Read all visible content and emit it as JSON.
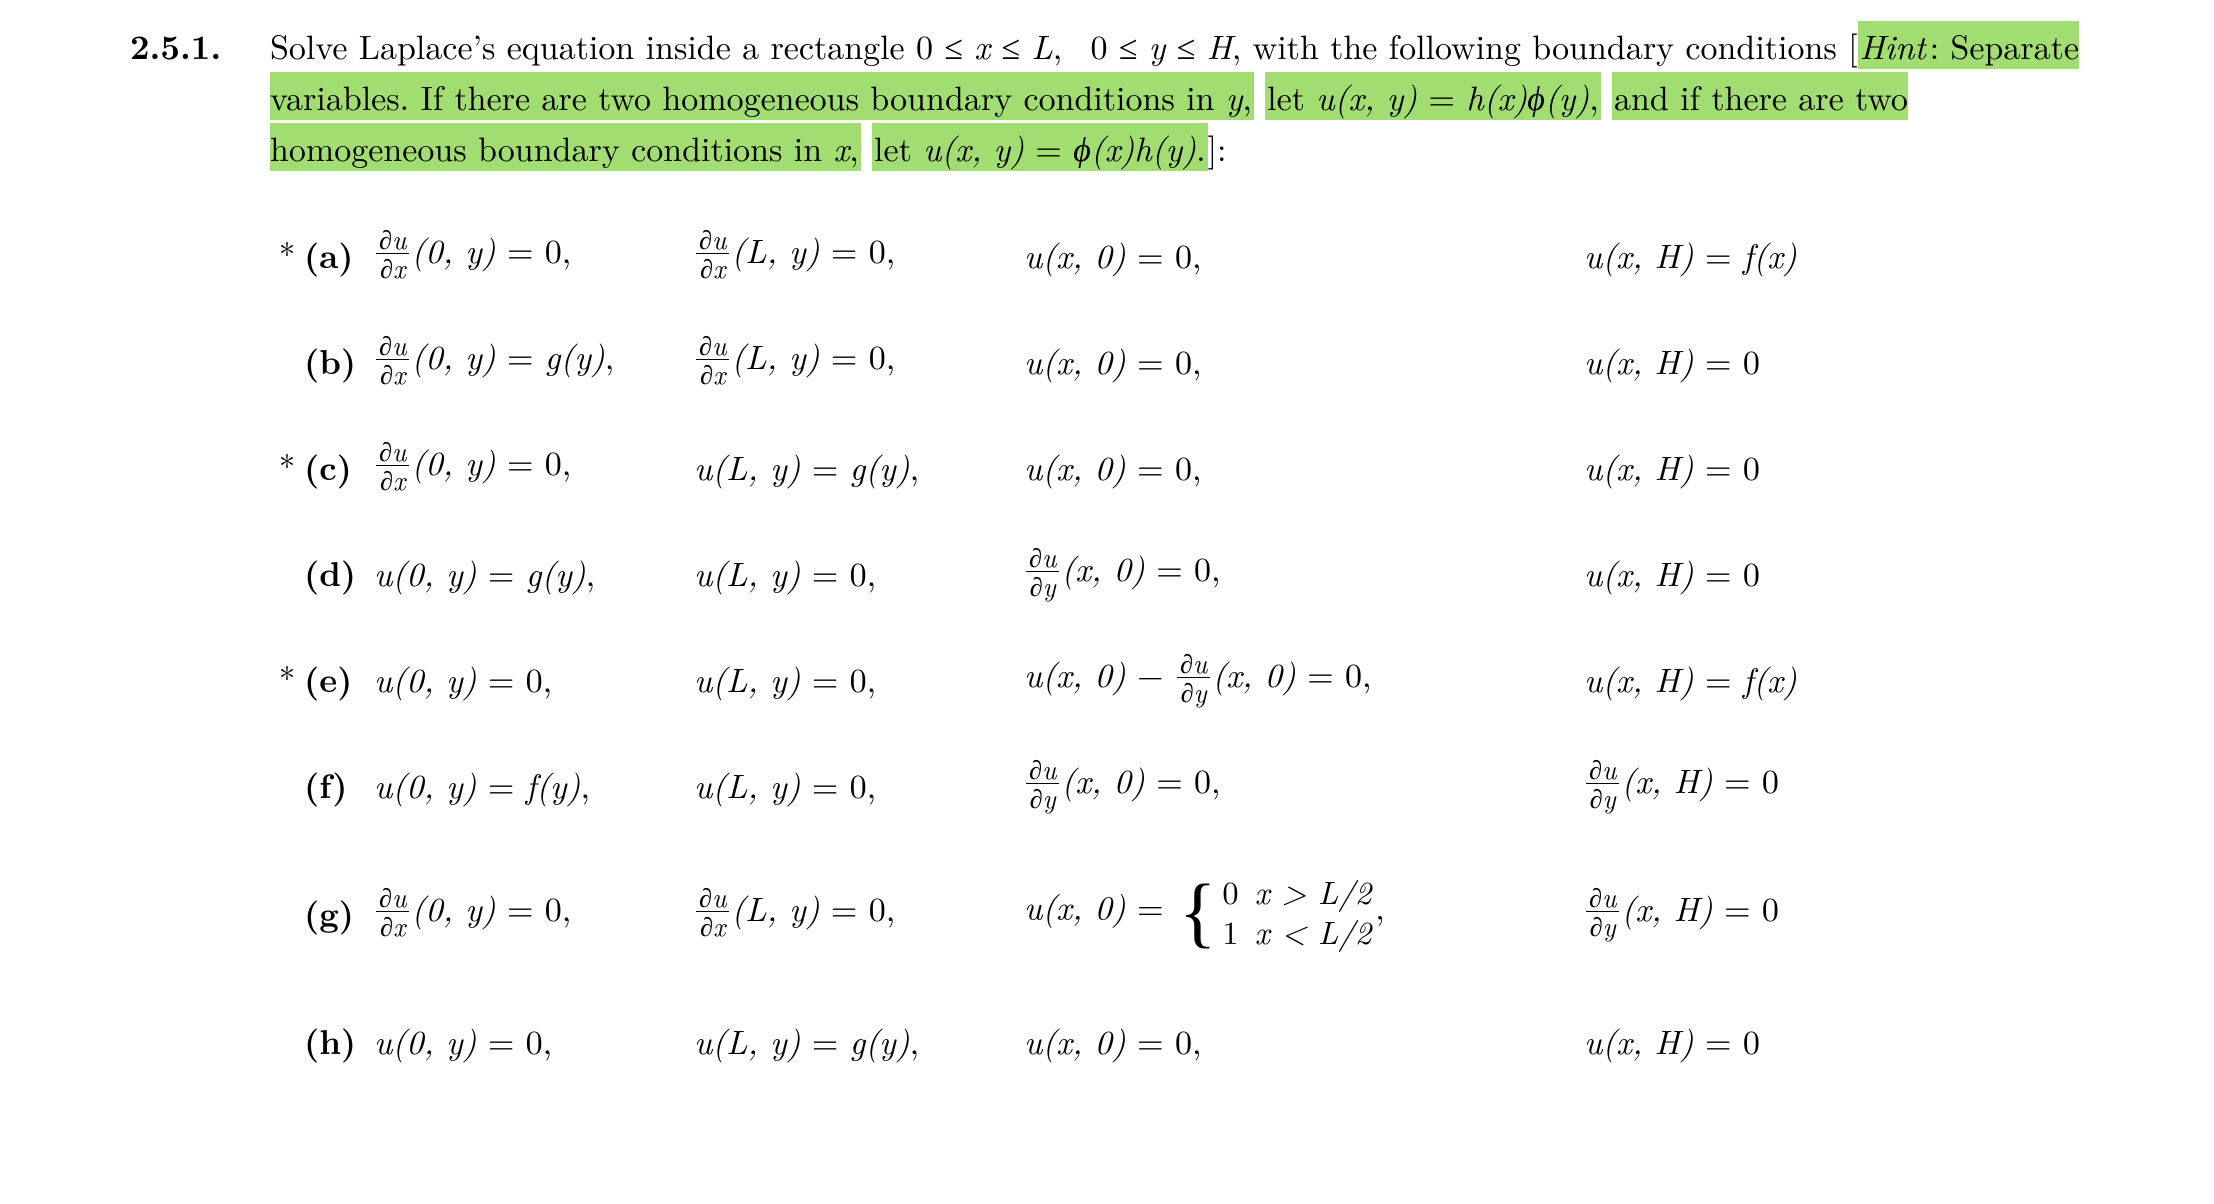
{
  "problem_number": "2.5.1.",
  "intro": {
    "text_before_hint": "Solve Laplace's equation inside a rectangle 0 ≤ x ≤ L, 0 ≤ y ≤ H, with the following boundary conditions [",
    "hint_label": "Hint",
    "hint_seg1": ": Separate variables. If there are two homogeneous boundary conditions in ",
    "hint_var1": "y",
    "hint_seg2": ", let ",
    "hint_eq1_lhs": "u(x, y)",
    "hint_eq1_rhs_h": "h(x)",
    "hint_eq1_rhs_phi": "ϕ(y)",
    "hint_seg3": ", and if there are two homogeneous boundary conditions in ",
    "hint_var2": "x",
    "hint_seg4": ", let ",
    "hint_eq2_lhs": "u(x, y)",
    "hint_eq2_rhs_phi": "ϕ(x)",
    "hint_eq2_rhs_h": "h(y)",
    "hint_seg5": ".]:"
  },
  "highlight_color": "#a1dd70",
  "text_color": "#000000",
  "background_color": "#ffffff",
  "parts": [
    {
      "star": "*",
      "label": "(a)",
      "bc1": {
        "type": "frac",
        "dnum": "∂u",
        "dden": "∂x",
        "arg": "(0, y)",
        "rhs": "= 0,"
      },
      "bc2": {
        "type": "frac",
        "dnum": "∂u",
        "dden": "∂x",
        "arg": "(L, y)",
        "rhs": "= 0,"
      },
      "bc3": {
        "type": "plain",
        "lhs": "u(x, 0)",
        "rhs": "= 0,"
      },
      "bc4": {
        "type": "plain",
        "lhs": "u(x, H)",
        "rhs": "= f(x)"
      }
    },
    {
      "star": "",
      "label": "(b)",
      "bc1": {
        "type": "frac",
        "dnum": "∂u",
        "dden": "∂x",
        "arg": "(0, y)",
        "rhs": "= g(y),"
      },
      "bc2": {
        "type": "frac",
        "dnum": "∂u",
        "dden": "∂x",
        "arg": "(L, y)",
        "rhs": "= 0,"
      },
      "bc3": {
        "type": "plain",
        "lhs": "u(x, 0)",
        "rhs": "= 0,"
      },
      "bc4": {
        "type": "plain",
        "lhs": "u(x, H)",
        "rhs": "= 0"
      }
    },
    {
      "star": "*",
      "label": "(c)",
      "bc1": {
        "type": "frac",
        "dnum": "∂u",
        "dden": "∂x",
        "arg": "(0, y)",
        "rhs": "= 0,"
      },
      "bc2": {
        "type": "plain",
        "lhs": "u(L, y)",
        "rhs": "= g(y),"
      },
      "bc3": {
        "type": "plain",
        "lhs": "u(x, 0)",
        "rhs": "= 0,"
      },
      "bc4": {
        "type": "plain",
        "lhs": "u(x, H)",
        "rhs": "= 0"
      }
    },
    {
      "star": "",
      "label": "(d)",
      "bc1": {
        "type": "plain",
        "lhs": "u(0, y)",
        "rhs": "= g(y),"
      },
      "bc2": {
        "type": "plain",
        "lhs": "u(L, y)",
        "rhs": "= 0,"
      },
      "bc3": {
        "type": "frac",
        "dnum": "∂u",
        "dden": "∂y",
        "arg": "(x, 0)",
        "rhs": "= 0,"
      },
      "bc4": {
        "type": "plain",
        "lhs": "u(x, H)",
        "rhs": "= 0"
      }
    },
    {
      "star": "*",
      "label": "(e)",
      "bc1": {
        "type": "plain",
        "lhs": "u(0, y)",
        "rhs": "= 0,"
      },
      "bc2": {
        "type": "plain",
        "lhs": "u(L, y)",
        "rhs": "= 0,"
      },
      "bc3": {
        "type": "minusfrac",
        "lhs": "u(x, 0)",
        "op": "−",
        "dnum": "∂u",
        "dden": "∂y",
        "arg": "(x, 0)",
        "rhs": "= 0,"
      },
      "bc4": {
        "type": "plain",
        "lhs": "u(x, H)",
        "rhs": "= f(x)"
      }
    },
    {
      "star": "",
      "label": "(f)",
      "bc1": {
        "type": "plain",
        "lhs": "u(0, y)",
        "rhs": "= f(y),"
      },
      "bc2": {
        "type": "plain",
        "lhs": "u(L, y)",
        "rhs": "= 0,"
      },
      "bc3": {
        "type": "frac",
        "dnum": "∂u",
        "dden": "∂y",
        "arg": "(x, 0)",
        "rhs": "= 0,"
      },
      "bc4": {
        "type": "frac",
        "dnum": "∂u",
        "dden": "∂y",
        "arg": "(x, H)",
        "rhs": "= 0"
      }
    },
    {
      "star": "",
      "label": "(g)",
      "tall": true,
      "bc1": {
        "type": "frac",
        "dnum": "∂u",
        "dden": "∂x",
        "arg": "(0, y)",
        "rhs": "= 0,"
      },
      "bc2": {
        "type": "frac",
        "dnum": "∂u",
        "dden": "∂x",
        "arg": "(L, y)",
        "rhs": "= 0,"
      },
      "bc3": {
        "type": "piecewise",
        "lhs": "u(x, 0)",
        "eq": "=",
        "rows": [
          {
            "val": "0",
            "cond": "x > L/2"
          },
          {
            "val": "1",
            "cond": "x < L/2"
          }
        ],
        "trail": ","
      },
      "bc4": {
        "type": "frac",
        "dnum": "∂u",
        "dden": "∂y",
        "arg": "(x, H)",
        "rhs": "= 0"
      }
    },
    {
      "star": "",
      "label": "(h)",
      "bc1": {
        "type": "plain",
        "lhs": "u(0, y)",
        "rhs": "= 0,"
      },
      "bc2": {
        "type": "plain",
        "lhs": "u(L, y)",
        "rhs": "= g(y),"
      },
      "bc3": {
        "type": "plain",
        "lhs": "u(x, 0)",
        "rhs": "= 0,"
      },
      "bc4": {
        "type": "plain",
        "lhs": "u(x, H)",
        "rhs": "= 0"
      }
    }
  ]
}
